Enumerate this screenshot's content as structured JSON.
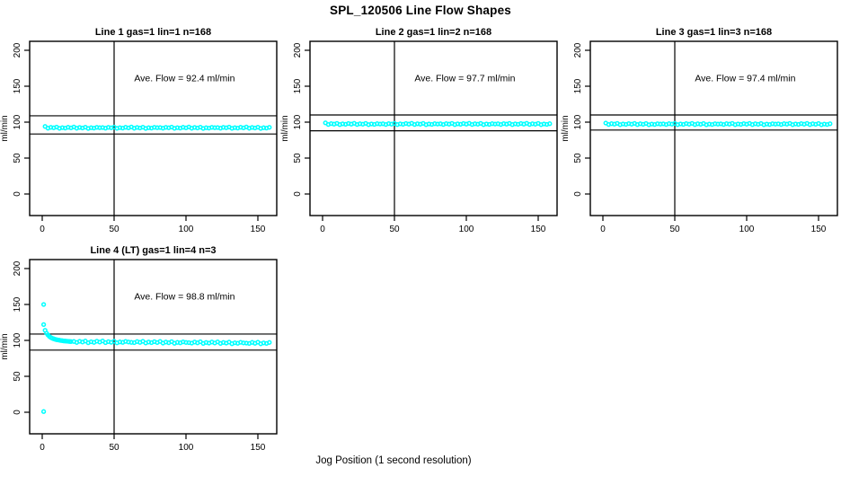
{
  "figure": {
    "title": "SPL_120506  Line Flow Shapes",
    "xlabel": "Jog Position (1 second resolution)",
    "ylabel": "ml/min",
    "background": "#FFFFFF",
    "point_color": "#00FFFF",
    "axis_color": "#000000"
  },
  "axes": {
    "x_ticks": [
      0,
      50,
      100,
      150
    ],
    "y_ticks": [
      0,
      50,
      100,
      150,
      200
    ],
    "xlim": [
      -8.75,
      163.1
    ],
    "ylim": [
      -30,
      212.5
    ],
    "grid": false
  },
  "chart_data": [
    {
      "type": "scatter",
      "title": "Line 1 gas=1 lin=1 n=168",
      "n": 168,
      "ave_flow": 92.4,
      "annotation": "Ave. Flow =  92.4  ml/min",
      "vline_x": 50,
      "hlines": [
        108.8,
        83.5
      ],
      "x_start": 2,
      "x_step": 2,
      "y": [
        94.0,
        91.6,
        92.8,
        92.1,
        93.1,
        91.4,
        92.4,
        91.8,
        92.9,
        92.0,
        93.2,
        91.5,
        92.6,
        91.9,
        93.0,
        91.3,
        92.3,
        91.7,
        92.7,
        92.2,
        92.5,
        91.6,
        92.8,
        92.1,
        93.1,
        91.4,
        92.4,
        91.8,
        92.9,
        92.0,
        93.2,
        91.5,
        92.6,
        91.9,
        93.0,
        91.3,
        92.3,
        91.7,
        92.7,
        92.2,
        92.5,
        91.6,
        92.8,
        92.1,
        93.1,
        91.4,
        92.4,
        91.8,
        92.9,
        92.0,
        93.2,
        91.5,
        92.6,
        91.9,
        93.0,
        91.3,
        92.3,
        91.7,
        92.7,
        92.2,
        92.5,
        91.6,
        92.8,
        92.1,
        93.1,
        91.4,
        92.4,
        91.8,
        92.9,
        92.0,
        93.2,
        91.5,
        92.6,
        91.9,
        93.0,
        91.3,
        92.3,
        91.7,
        92.7
      ]
    },
    {
      "type": "scatter",
      "title": "Line 2 gas=1 lin=2 n=168",
      "n": 168,
      "ave_flow": 97.7,
      "annotation": "Ave. Flow =  97.7  ml/min",
      "vline_x": 50,
      "hlines": [
        110.0,
        88.0
      ],
      "x_start": 2,
      "x_step": 2,
      "y": [
        99.0,
        96.8,
        98.0,
        97.3,
        98.3,
        96.6,
        97.6,
        97.0,
        98.1,
        97.2,
        98.4,
        96.7,
        97.8,
        97.1,
        98.2,
        96.5,
        97.5,
        96.9,
        97.9,
        97.4,
        97.7,
        96.8,
        98.0,
        97.3,
        98.3,
        96.6,
        97.6,
        97.0,
        98.1,
        97.2,
        98.4,
        96.7,
        97.8,
        97.1,
        98.2,
        96.5,
        97.5,
        96.9,
        97.9,
        97.4,
        97.7,
        96.8,
        98.0,
        97.3,
        98.3,
        96.6,
        97.6,
        97.0,
        98.1,
        97.2,
        98.4,
        96.7,
        97.8,
        97.1,
        98.2,
        96.5,
        97.5,
        96.9,
        97.9,
        97.4,
        97.7,
        96.8,
        98.0,
        97.3,
        98.3,
        96.6,
        97.6,
        97.0,
        98.1,
        97.2,
        98.4,
        96.7,
        97.8,
        97.1,
        98.2,
        96.5,
        97.5,
        96.9,
        97.9
      ]
    },
    {
      "type": "scatter",
      "title": "Line 3 gas=1 lin=3 n=168",
      "n": 168,
      "ave_flow": 97.4,
      "annotation": "Ave. Flow =  97.4  ml/min",
      "vline_x": 50,
      "hlines": [
        110.0,
        89.0
      ],
      "x_start": 2,
      "x_step": 2,
      "y": [
        98.8,
        96.7,
        97.9,
        97.2,
        98.2,
        96.5,
        97.5,
        96.9,
        98.0,
        97.1,
        98.3,
        96.6,
        97.7,
        97.0,
        98.1,
        96.4,
        97.4,
        96.8,
        97.8,
        97.3,
        97.6,
        96.7,
        97.9,
        97.2,
        98.2,
        96.5,
        97.5,
        96.9,
        98.0,
        97.1,
        98.3,
        96.6,
        97.7,
        97.0,
        98.1,
        96.4,
        97.4,
        96.8,
        97.8,
        97.3,
        97.6,
        96.7,
        97.9,
        97.2,
        98.2,
        96.5,
        97.5,
        96.9,
        98.0,
        97.1,
        98.3,
        96.6,
        97.7,
        97.0,
        98.1,
        96.4,
        97.4,
        96.8,
        97.8,
        97.3,
        97.6,
        96.7,
        97.9,
        97.2,
        98.2,
        96.5,
        97.5,
        96.9,
        98.0,
        97.1,
        98.3,
        96.6,
        97.7,
        97.0,
        98.1,
        96.4,
        97.4,
        96.8,
        97.8
      ]
    },
    {
      "type": "scatter",
      "title": "Line 4 (LT) gas=1 lin=4 n=3",
      "n": 3,
      "ave_flow": 98.8,
      "annotation": "Ave. Flow =  98.8  ml/min",
      "vline_x": 50,
      "hlines": [
        108.8,
        86.5
      ],
      "points": [
        [
          1,
          150
        ],
        [
          1,
          122
        ],
        [
          1,
          1
        ],
        [
          2,
          114
        ],
        [
          3,
          110
        ],
        [
          4,
          107.5
        ],
        [
          5,
          105.5
        ],
        [
          6,
          104
        ],
        [
          7,
          103
        ],
        [
          8,
          102.2
        ],
        [
          9,
          101.5
        ],
        [
          10,
          101
        ],
        [
          11,
          100.6
        ],
        [
          12,
          100.2
        ],
        [
          13,
          99.9
        ],
        [
          14,
          99.6
        ],
        [
          15,
          99.3
        ],
        [
          16,
          99.1
        ],
        [
          17,
          98.9
        ],
        [
          18,
          98.7
        ],
        [
          19,
          98.5
        ],
        [
          20,
          98.4
        ],
        [
          22,
          98.5
        ],
        [
          24,
          97.1
        ],
        [
          26,
          98.8
        ],
        [
          28,
          97.7
        ],
        [
          30,
          99.1
        ],
        [
          32,
          96.7
        ],
        [
          34,
          98.1
        ],
        [
          36,
          97.3
        ],
        [
          38,
          98.9
        ],
        [
          40,
          97.6
        ],
        [
          42,
          99.2
        ],
        [
          44,
          96.9
        ],
        [
          46,
          98.3
        ],
        [
          48,
          97.4
        ],
        [
          50,
          98.9
        ],
        [
          52,
          96.6
        ],
        [
          54,
          97.9
        ],
        [
          56,
          97.2
        ],
        [
          58,
          98.6
        ],
        [
          60,
          97.7
        ],
        [
          62,
          97.3
        ],
        [
          64,
          96.9
        ],
        [
          66,
          98.4
        ],
        [
          68,
          97.2
        ],
        [
          70,
          98.7
        ],
        [
          72,
          96.4
        ],
        [
          74,
          97.7
        ],
        [
          76,
          96.9
        ],
        [
          78,
          98.3
        ],
        [
          80,
          97.0
        ],
        [
          82,
          98.6
        ],
        [
          84,
          96.3
        ],
        [
          86,
          97.7
        ],
        [
          88,
          96.8
        ],
        [
          90,
          98.2
        ],
        [
          92,
          96.0
        ],
        [
          94,
          97.3
        ],
        [
          96,
          96.6
        ],
        [
          98,
          98.0
        ],
        [
          100,
          97.1
        ],
        [
          102,
          96.9
        ],
        [
          104,
          96.3
        ],
        [
          106,
          97.8
        ],
        [
          108,
          96.6
        ],
        [
          110,
          98.1
        ],
        [
          112,
          95.8
        ],
        [
          114,
          97.1
        ],
        [
          116,
          96.3
        ],
        [
          118,
          97.7
        ],
        [
          120,
          96.4
        ],
        [
          122,
          98.0
        ],
        [
          124,
          95.7
        ],
        [
          126,
          97.1
        ],
        [
          128,
          96.2
        ],
        [
          130,
          97.6
        ],
        [
          132,
          95.4
        ],
        [
          134,
          96.7
        ],
        [
          136,
          96.0
        ],
        [
          138,
          97.4
        ],
        [
          140,
          96.5
        ],
        [
          142,
          96.3
        ],
        [
          144,
          95.7
        ],
        [
          146,
          97.2
        ],
        [
          148,
          96.0
        ],
        [
          150,
          97.5
        ],
        [
          152,
          95.2
        ],
        [
          154,
          96.5
        ],
        [
          156,
          95.7
        ],
        [
          158,
          97.1
        ]
      ]
    }
  ]
}
